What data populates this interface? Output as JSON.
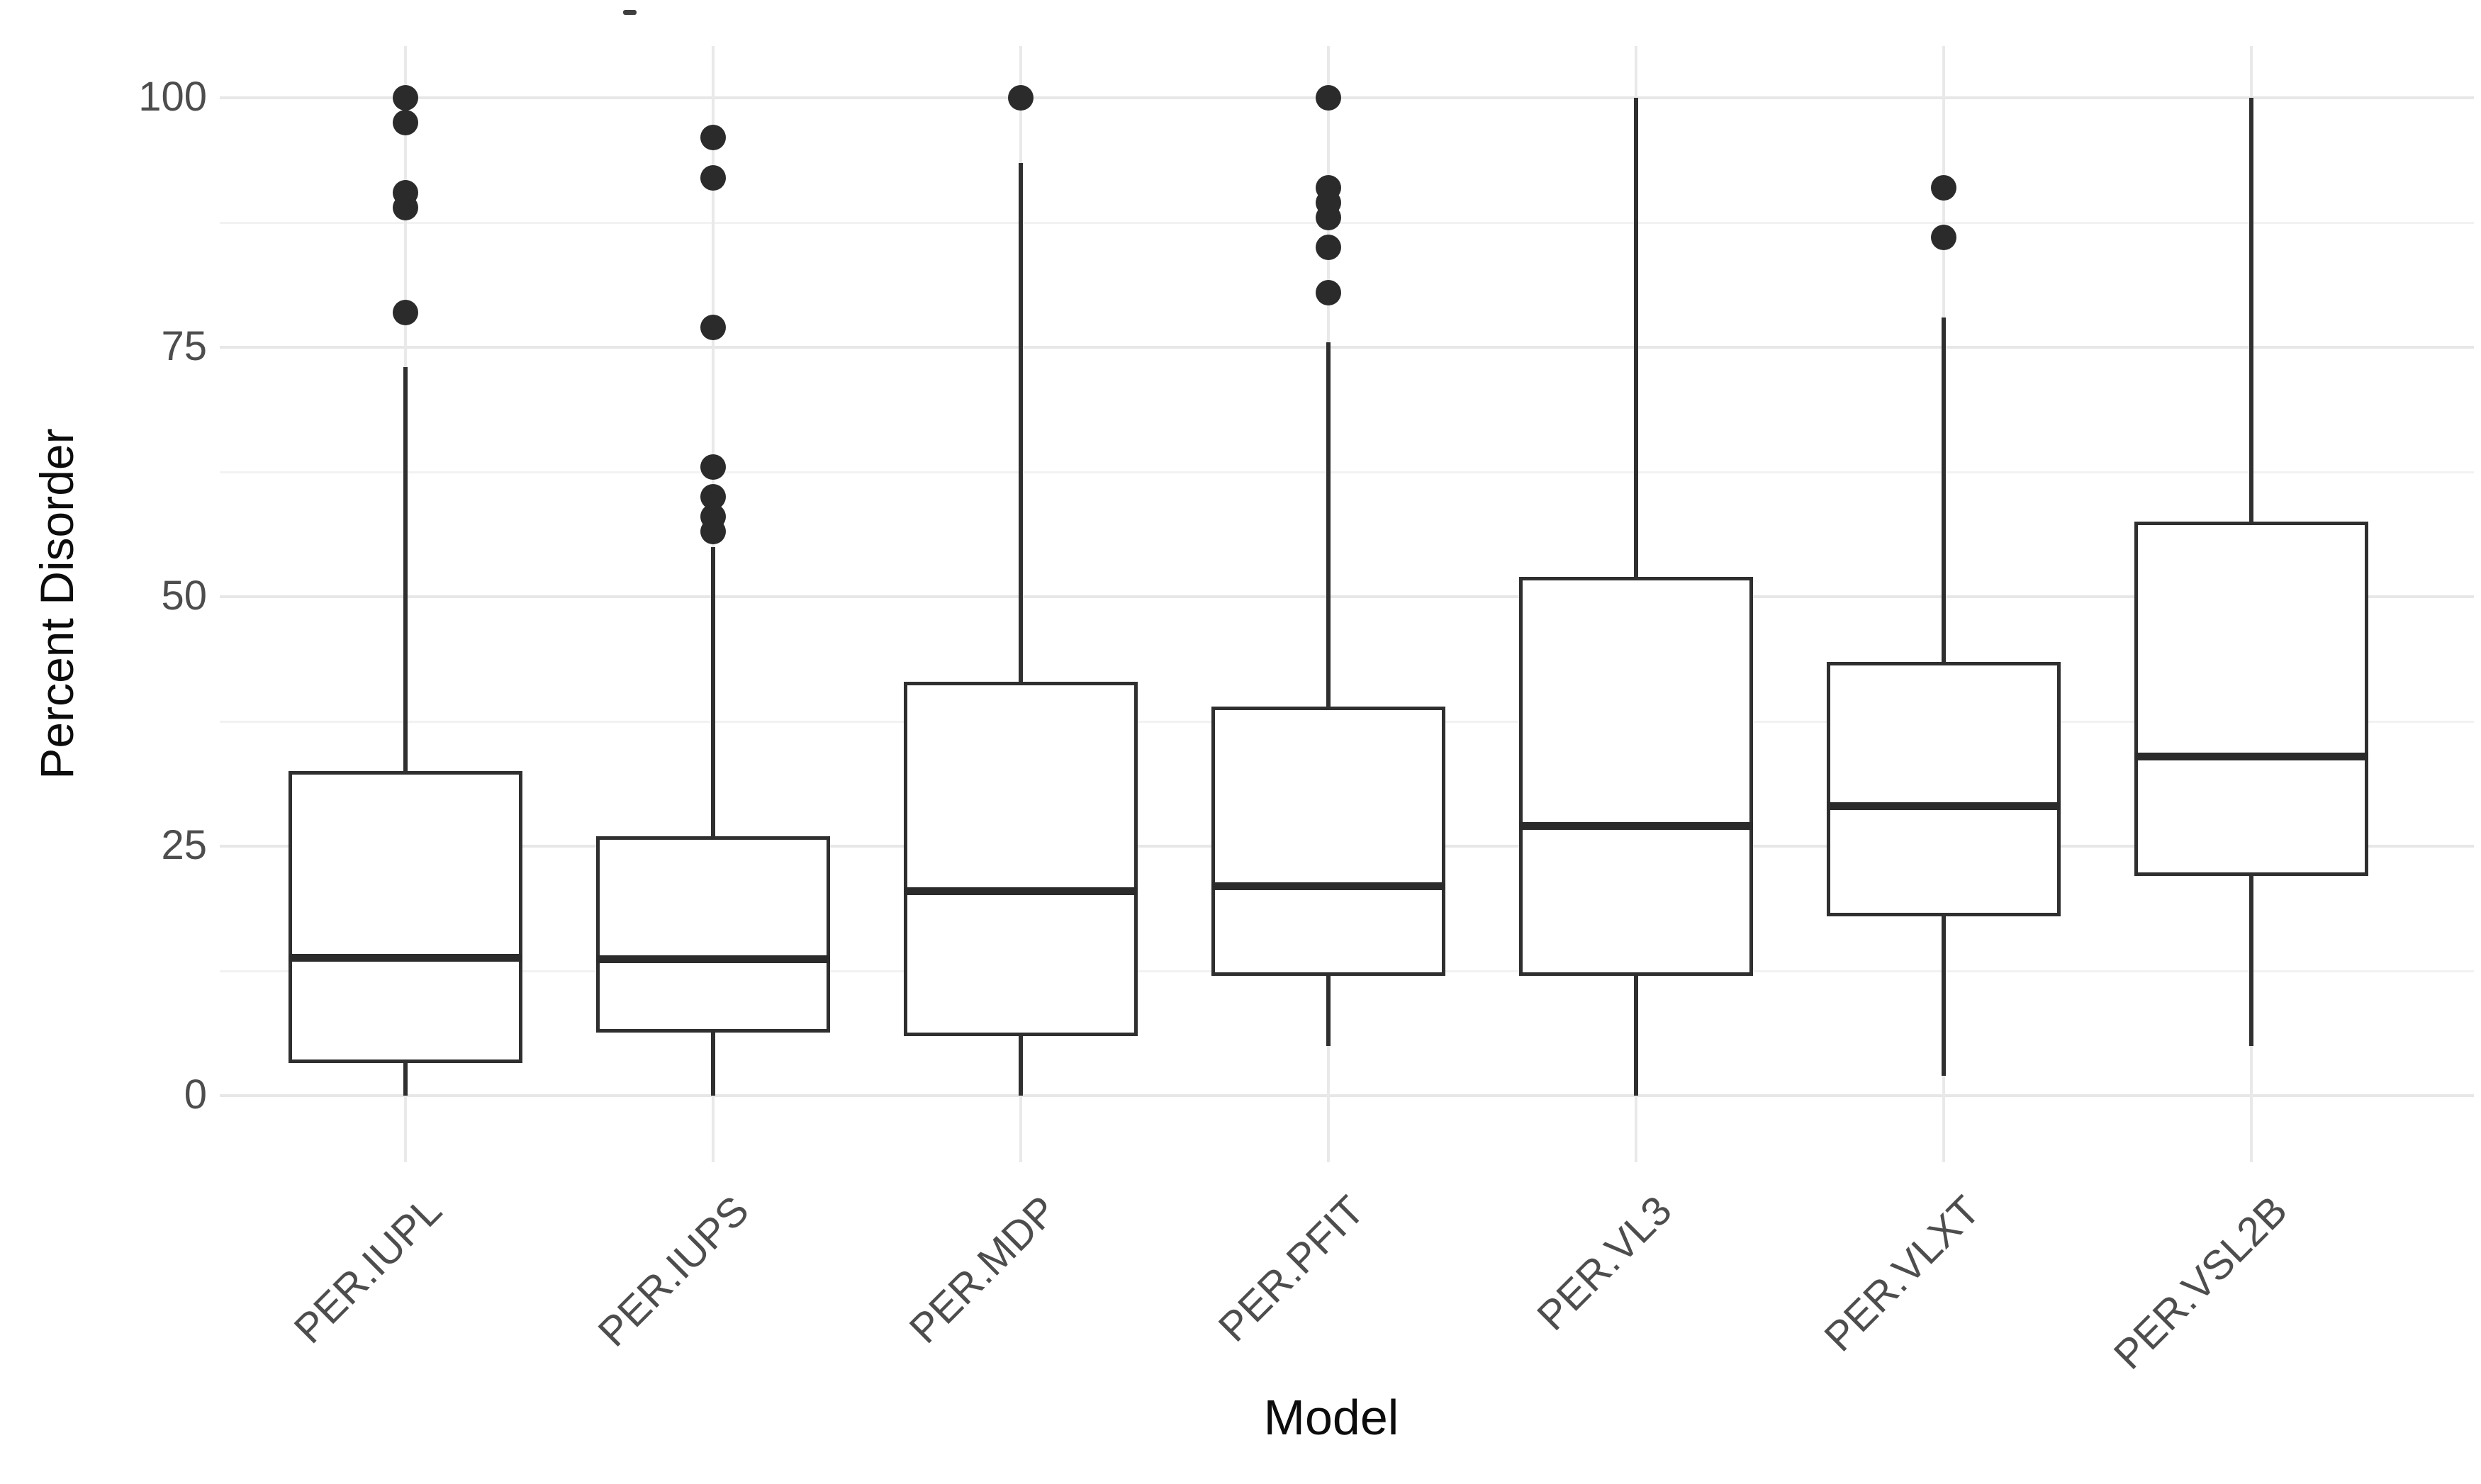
{
  "figure": {
    "background": "#ffffff"
  },
  "chart_data": {
    "type": "boxplot",
    "title": "",
    "xlabel": "Model",
    "ylabel": "Percent Disorder",
    "ylim": [
      0,
      100
    ],
    "grid": "on",
    "legend": "none",
    "y_major_ticks": [
      0,
      25,
      50,
      75,
      100
    ],
    "y_minor_ticks": [
      12.5,
      37.5,
      62.5,
      87.5
    ],
    "categories": [
      "PER.IUPL",
      "PER.IUPS",
      "PER.MDP",
      "PER.PFIT",
      "PER.VL3",
      "PER.VLXT",
      "PER.VSL2B"
    ],
    "series": [
      {
        "model": "PER.IUPL",
        "whisker_low": 0,
        "q1": 3.3,
        "median": 13.8,
        "q3": 32.5,
        "whisker_high": 73,
        "outliers": [
          78.5,
          89,
          90.5,
          97.5,
          100
        ]
      },
      {
        "model": "PER.IUPS",
        "whisker_low": 0,
        "q1": 6.3,
        "median": 13.7,
        "q3": 26,
        "whisker_high": 55,
        "outliers": [
          56.5,
          58,
          60,
          63,
          77,
          92,
          96
        ]
      },
      {
        "model": "PER.MDP",
        "whisker_low": 0,
        "q1": 6,
        "median": 20.5,
        "q3": 41.5,
        "whisker_high": 93.5,
        "outliers": [
          100
        ]
      },
      {
        "model": "PER.PFIT",
        "whisker_low": 5,
        "q1": 12,
        "median": 21,
        "q3": 39,
        "whisker_high": 75.5,
        "outliers": [
          80.5,
          85,
          88,
          89.5,
          91,
          100
        ]
      },
      {
        "model": "PER.VL3",
        "whisker_low": 0,
        "q1": 12,
        "median": 27,
        "q3": 52,
        "whisker_high": 100,
        "outliers": []
      },
      {
        "model": "PER.VLXT",
        "whisker_low": 2,
        "q1": 18,
        "median": 29,
        "q3": 43.5,
        "whisker_high": 78,
        "outliers": [
          86,
          91
        ]
      },
      {
        "model": "PER.VSL2B",
        "whisker_low": 5,
        "q1": 22,
        "median": 34,
        "q3": 57.5,
        "whisker_high": 100,
        "outliers": []
      }
    ],
    "colors": {
      "box_line": "#2f2f2f",
      "median_line": "#2b2b2b",
      "outlier_dot": "#2b2b2b",
      "grid_major": "#e7e7e7",
      "grid_minor": "#f2f2f2",
      "grid_vertical": "#e9e9e9",
      "tick_label": "#4d4d4d",
      "axis_title": "#0c0c0c",
      "background": "#ffffff"
    }
  }
}
